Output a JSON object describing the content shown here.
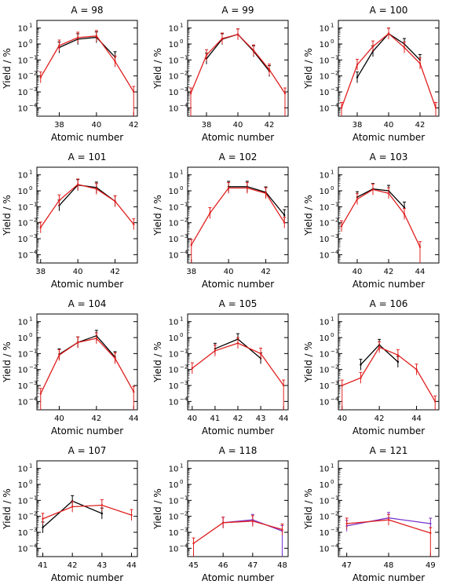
{
  "chart_data": [
    {
      "type": "line",
      "title": "A = 98",
      "xlabel": "Atomic number",
      "ylabel": "Yield / %",
      "xlim": [
        36.8,
        42.2
      ],
      "xticks": [
        38,
        40,
        42
      ],
      "yscale": "log",
      "ylim": [
        3e-05,
        30
      ],
      "yticks": [
        "10^1",
        "10^0",
        "10^-1",
        "10^-2",
        "10^-3",
        "10^-4"
      ],
      "series": [
        {
          "color": "#000000",
          "x": [
            38,
            39,
            40,
            41
          ],
          "values": [
            0.6,
            2.0,
            2.6,
            0.15
          ]
        },
        {
          "color": "#e02020",
          "x": [
            37,
            38,
            39,
            40,
            41,
            42
          ],
          "values": [
            0.008,
            0.8,
            2.5,
            3.2,
            0.08,
            0.001
          ]
        }
      ]
    },
    {
      "type": "line",
      "title": "A = 99",
      "xlabel": "Atomic number",
      "ylabel": "Yield / %",
      "xlim": [
        36.8,
        43.2
      ],
      "xticks": [
        38,
        40,
        42
      ],
      "yscale": "log",
      "ylim": [
        3e-05,
        30
      ],
      "yticks": [
        "10^1",
        "10^0",
        "10^-1",
        "10^-2",
        "10^-3",
        "10^-4"
      ],
      "series": [
        {
          "color": "#000000",
          "x": [
            38,
            39,
            40,
            41,
            42
          ],
          "values": [
            0.12,
            2.0,
            4.0,
            0.35,
            0.02
          ]
        },
        {
          "color": "#e02020",
          "x": [
            37,
            38,
            39,
            40,
            41,
            42,
            43
          ],
          "values": [
            0.0008,
            0.2,
            2.2,
            4.0,
            0.4,
            0.025,
            0.0008
          ]
        }
      ]
    },
    {
      "type": "line",
      "title": "A = 100",
      "xlabel": "Atomic number",
      "ylabel": "Yield / %",
      "xlim": [
        36.8,
        43.2
      ],
      "xticks": [
        38,
        40,
        42
      ],
      "yscale": "log",
      "ylim": [
        3e-05,
        30
      ],
      "yticks": [
        "10^1",
        "10^0",
        "10^-1",
        "10^-2",
        "10^-3",
        "10^-4"
      ],
      "series": [
        {
          "color": "#000000",
          "x": [
            38,
            39,
            40,
            41,
            42
          ],
          "values": [
            0.008,
            0.35,
            4.5,
            1.0,
            0.1
          ]
        },
        {
          "color": "#e02020",
          "x": [
            37,
            38,
            39,
            40,
            41,
            42,
            43
          ],
          "values": [
            0.0001,
            0.05,
            0.7,
            4.5,
            0.6,
            0.06,
            0.0001
          ]
        }
      ]
    },
    {
      "type": "line",
      "title": "A = 101",
      "xlabel": "Atomic number",
      "ylabel": "Yield / %",
      "xlim": [
        37.8,
        43.2
      ],
      "xticks": [
        38,
        40,
        42
      ],
      "yscale": "log",
      "ylim": [
        3e-05,
        30
      ],
      "yticks": [
        "10^1",
        "10^0",
        "10^-1",
        "10^-2",
        "10^-3",
        "10^-4"
      ],
      "series": [
        {
          "color": "#000000",
          "x": [
            39,
            40,
            41,
            42
          ],
          "values": [
            0.12,
            2.3,
            1.6,
            0.22
          ]
        },
        {
          "color": "#e02020",
          "x": [
            38,
            39,
            40,
            41,
            42,
            43
          ],
          "values": [
            0.005,
            0.25,
            2.5,
            1.3,
            0.22,
            0.008
          ]
        }
      ]
    },
    {
      "type": "line",
      "title": "A = 102",
      "xlabel": "Atomic number",
      "ylabel": "Yield / %",
      "xlim": [
        37.8,
        43.2
      ],
      "xticks": [
        38,
        40,
        42
      ],
      "yscale": "log",
      "ylim": [
        3e-05,
        30
      ],
      "yticks": [
        "10^1",
        "10^0",
        "10^-1",
        "10^-2",
        "10^-3",
        "10^-4"
      ],
      "series": [
        {
          "color": "#000000",
          "x": [
            40,
            41,
            42,
            43
          ],
          "values": [
            1.8,
            1.8,
            0.8,
            0.03
          ]
        },
        {
          "color": "#e02020",
          "x": [
            38,
            39,
            40,
            41,
            42,
            43
          ],
          "values": [
            0.0004,
            0.04,
            1.5,
            1.5,
            0.7,
            0.01
          ]
        }
      ]
    },
    {
      "type": "line",
      "title": "A = 103",
      "xlabel": "Atomic number",
      "ylabel": "Yield / %",
      "xlim": [
        38.8,
        45.2
      ],
      "xticks": [
        40,
        42,
        44
      ],
      "yscale": "log",
      "ylim": [
        3e-05,
        30
      ],
      "yticks": [
        "10^1",
        "10^0",
        "10^-1",
        "10^-2",
        "10^-3",
        "10^-4"
      ],
      "series": [
        {
          "color": "#000000",
          "x": [
            40,
            41,
            42,
            43
          ],
          "values": [
            0.4,
            1.3,
            1.0,
            0.09
          ]
        },
        {
          "color": "#e02020",
          "x": [
            39,
            40,
            41,
            42,
            43,
            44
          ],
          "values": [
            0.006,
            0.3,
            1.2,
            0.7,
            0.035,
            0.0003
          ]
        }
      ]
    },
    {
      "type": "line",
      "title": "A = 104",
      "xlabel": "Atomic number",
      "ylabel": "Yield / %",
      "xlim": [
        38.8,
        44.2
      ],
      "xticks": [
        40,
        42,
        44
      ],
      "yscale": "log",
      "ylim": [
        3e-05,
        30
      ],
      "yticks": [
        "10^1",
        "10^0",
        "10^-1",
        "10^-2",
        "10^-3",
        "10^-4"
      ],
      "series": [
        {
          "color": "#000000",
          "x": [
            40,
            41,
            42,
            43
          ],
          "values": [
            0.09,
            0.5,
            1.3,
            0.06
          ]
        },
        {
          "color": "#e02020",
          "x": [
            39,
            40,
            41,
            42,
            43,
            44
          ],
          "values": [
            0.0003,
            0.08,
            0.5,
            0.9,
            0.05,
            0.0004
          ]
        }
      ]
    },
    {
      "type": "line",
      "title": "A = 105",
      "xlabel": "Atomic number",
      "ylabel": "Yield / %",
      "xlim": [
        39.8,
        44.2
      ],
      "xticks": [
        40,
        41,
        42,
        43,
        44
      ],
      "yscale": "log",
      "ylim": [
        3e-05,
        30
      ],
      "yticks": [
        "10^1",
        "10^0",
        "10^-1",
        "10^-2",
        "10^-3",
        "10^-4"
      ],
      "series": [
        {
          "color": "#000000",
          "x": [
            41,
            42,
            43
          ],
          "values": [
            0.2,
            0.8,
            0.05
          ]
        },
        {
          "color": "#e02020",
          "x": [
            40,
            41,
            42,
            43,
            44
          ],
          "values": [
            0.012,
            0.15,
            0.45,
            0.1,
            0.001
          ]
        }
      ]
    },
    {
      "type": "line",
      "title": "A = 106",
      "xlabel": "Atomic number",
      "ylabel": "Yield / %",
      "xlim": [
        39.8,
        45.2
      ],
      "xticks": [
        40,
        42,
        44
      ],
      "yscale": "log",
      "ylim": [
        3e-05,
        30
      ],
      "yticks": [
        "10^1",
        "10^0",
        "10^-1",
        "10^-2",
        "10^-3",
        "10^-4"
      ],
      "series": [
        {
          "color": "#000000",
          "x": [
            41,
            42,
            43
          ],
          "values": [
            0.02,
            0.35,
            0.03
          ]
        },
        {
          "color": "#e02020",
          "x": [
            40,
            41,
            42,
            43,
            44,
            45
          ],
          "values": [
            0.001,
            0.003,
            0.25,
            0.08,
            0.01,
            0.0001
          ]
        }
      ]
    },
    {
      "type": "line",
      "title": "A = 107",
      "xlabel": "Atomic number",
      "ylabel": "Yield / %",
      "xlim": [
        40.8,
        44.2
      ],
      "xticks": [
        41,
        42,
        43,
        44
      ],
      "yscale": "log",
      "ylim": [
        3e-05,
        30
      ],
      "yticks": [
        "10^1",
        "10^0",
        "10^-1",
        "10^-2",
        "10^-3",
        "10^-4"
      ],
      "series": [
        {
          "color": "#000000",
          "x": [
            41,
            42,
            43
          ],
          "values": [
            0.002,
            0.09,
            0.015
          ]
        },
        {
          "color": "#e02020",
          "x": [
            41,
            42,
            43,
            44
          ],
          "values": [
            0.007,
            0.04,
            0.05,
            0.012
          ]
        }
      ]
    },
    {
      "type": "line",
      "title": "A = 118",
      "xlabel": "Atomic number",
      "ylabel": "Yield / %",
      "xlim": [
        44.8,
        48.2
      ],
      "xticks": [
        45,
        46,
        47,
        48
      ],
      "yscale": "log",
      "ylim": [
        3e-05,
        30
      ],
      "yticks": [
        "10^1",
        "10^0",
        "10^-1",
        "10^-2",
        "10^-3",
        "10^-4"
      ],
      "series": [
        {
          "color": "#7733cc",
          "x": [
            46,
            47,
            48
          ],
          "values": [
            0.004,
            0.006,
            0.0012
          ]
        },
        {
          "color": "#e02020",
          "x": [
            45,
            46,
            47,
            48
          ],
          "values": [
            0.0002,
            0.004,
            0.005,
            0.0015
          ]
        }
      ]
    },
    {
      "type": "line",
      "title": "A = 121",
      "xlabel": "Atomic number",
      "ylabel": "Yield / %",
      "xlim": [
        46.8,
        49.2
      ],
      "xticks": [
        47,
        48,
        49
      ],
      "yscale": "log",
      "ylim": [
        3e-05,
        30
      ],
      "yticks": [
        "10^1",
        "10^0",
        "10^-1",
        "10^-2",
        "10^-3",
        "10^-4"
      ],
      "series": [
        {
          "color": "#7733cc",
          "x": [
            47,
            48,
            49
          ],
          "values": [
            0.0025,
            0.008,
            0.0035
          ]
        },
        {
          "color": "#e02020",
          "x": [
            47,
            48,
            49
          ],
          "values": [
            0.0035,
            0.006,
            0.0009
          ]
        }
      ]
    }
  ]
}
